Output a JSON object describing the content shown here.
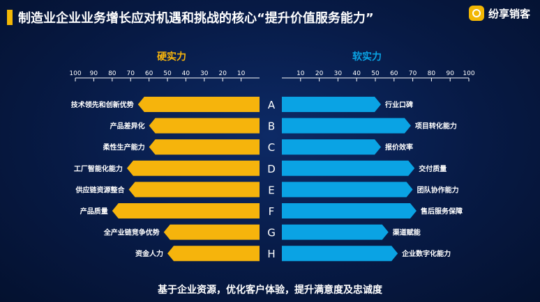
{
  "header": {
    "title": "制造业企业业务增长应对机遇和挑战的核心“提升价值服务能力”",
    "brand": "纷享销客"
  },
  "colors": {
    "hard": "#f6b40c",
    "soft": "#0aa3e4",
    "hard_heading": "#f6b40c",
    "soft_heading": "#0aa3e4",
    "axis": "#ffffff"
  },
  "chart_data": {
    "type": "bar",
    "layout": "diverging",
    "xlim": [
      0,
      100
    ],
    "ticks": [
      10,
      20,
      30,
      40,
      50,
      60,
      70,
      80,
      90,
      100
    ],
    "categories": [
      "A",
      "B",
      "C",
      "D",
      "E",
      "F",
      "G",
      "H"
    ],
    "series": [
      {
        "name": "硬实力",
        "direction": "left",
        "labels": [
          "技术领先和创新优势",
          "产品差异化",
          "柔性生产能力",
          "工厂智能化能力",
          "供应链资源整合",
          "产品质量",
          "全产业链竞争优势",
          "资金人力"
        ],
        "values": [
          66,
          60,
          60,
          72,
          71,
          80,
          52,
          50
        ]
      },
      {
        "name": "软实力",
        "direction": "right",
        "labels": [
          "行业口碑",
          "项目转化能力",
          "报价效率",
          "交付质量",
          "团队协作能力",
          "售后服务保障",
          "渠道赋能",
          "企业数字化能力"
        ],
        "values": [
          53,
          69,
          53,
          71,
          70,
          72,
          57,
          62
        ]
      }
    ]
  },
  "footer": {
    "text": "基于企业资源，优化客户体验，提升满意度及忠诚度"
  }
}
